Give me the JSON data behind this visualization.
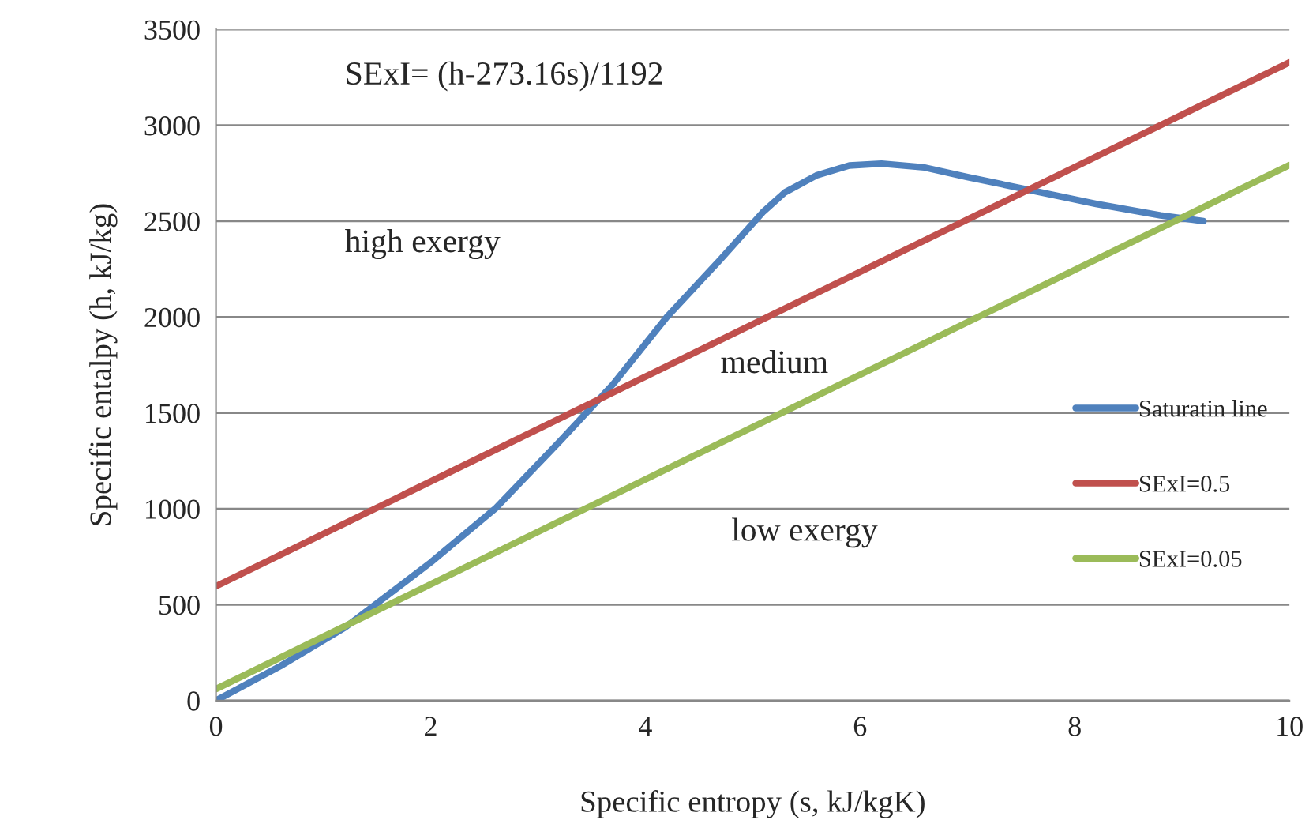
{
  "chart_data": {
    "type": "line",
    "xlabel": "Specific entropy (s, kJ/kgK)",
    "ylabel": "Specific entalpy (h, kJ/kg)",
    "xlim": [
      0,
      10
    ],
    "xticks": [
      0,
      2,
      4,
      6,
      8,
      10
    ],
    "ylim": [
      0,
      3500
    ],
    "yticks": [
      0,
      500,
      1000,
      1500,
      2000,
      2500,
      3000,
      3500
    ],
    "grid": "y",
    "legend": "right",
    "line_style": "solid",
    "marker": "none",
    "annotations": [
      "SExI= (h-273.16s)/1192",
      "high exergy",
      "medium",
      "low exergy"
    ],
    "series": [
      {
        "name": "Saturatin line",
        "color": "#4f81bd",
        "x": [
          0,
          0.6,
          1.2,
          2,
          2.6,
          3.2,
          3.7,
          4.2,
          4.7,
          5.1,
          5.3,
          5.6,
          5.9,
          6.2,
          6.6,
          7.0,
          7.6,
          8.2,
          8.8,
          9.2
        ],
        "values": [
          0,
          180,
          380,
          720,
          1000,
          1350,
          1650,
          2000,
          2300,
          2550,
          2650,
          2740,
          2790,
          2800,
          2780,
          2730,
          2660,
          2590,
          2530,
          2500
        ]
      },
      {
        "name": "SExI=0.5",
        "color": "#c0504d",
        "x": [
          0,
          10
        ],
        "values": [
          596,
          3328
        ]
      },
      {
        "name": "SExI=0.05",
        "color": "#9bbb59",
        "x": [
          0,
          10
        ],
        "values": [
          60,
          2792
        ]
      }
    ]
  }
}
